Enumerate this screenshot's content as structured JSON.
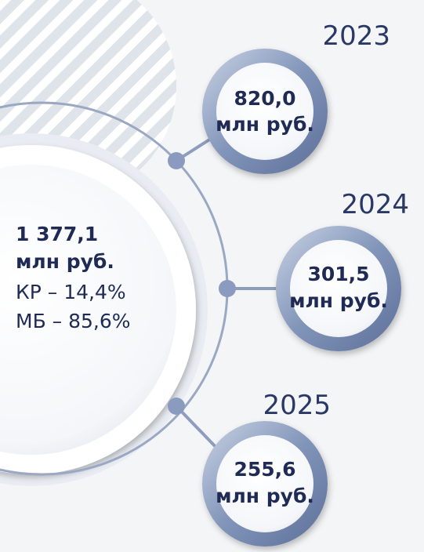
{
  "center": {
    "value": "1 377,1",
    "unit": "млн руб.",
    "lines": [
      "КР – 14,4%",
      "МБ – 85,6%"
    ]
  },
  "years": [
    {
      "year": "2023",
      "value": "820,0",
      "unit": "млн руб."
    },
    {
      "year": "2024",
      "value": "301,5",
      "unit": "млн руб."
    },
    {
      "year": "2025",
      "value": "255,6",
      "unit": "млн руб."
    }
  ]
}
